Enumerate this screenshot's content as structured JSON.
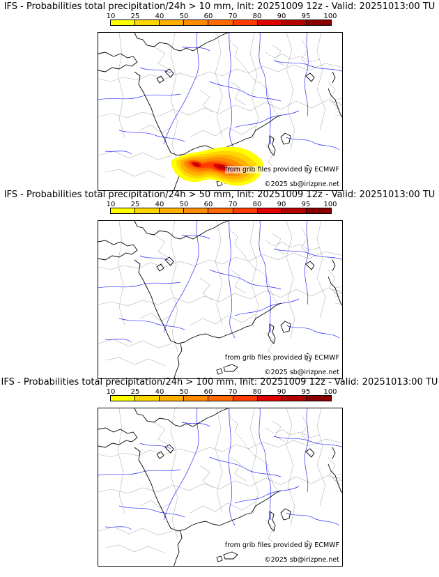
{
  "scale_labels": [
    "10",
    "25",
    "40",
    "50",
    "60",
    "70",
    "80",
    "90",
    "95",
    "100"
  ],
  "scale_colors": [
    "#ffff00",
    "#ffd700",
    "#ffb000",
    "#ff8c00",
    "#ff6a00",
    "#ff3c00",
    "#e00000",
    "#b40000",
    "#8a0000"
  ],
  "credit": "from grib files provided by ECMWF",
  "copyright": "©2025 sb@irizpne.net",
  "panels": [
    {
      "title": "IFS - Probabilities total precipitation/24h > 10 mm, Init: 20251009 12z - Valid: 20251013:00 TU",
      "has_precip": true
    },
    {
      "title": "IFS - Probabilities total precipitation/24h > 50 mm, Init: 20251009 12z - Valid: 20251013:00 TU",
      "has_precip": false
    },
    {
      "title": "IFS - Probabilities total precipitation/24h > 100 mm, Init: 20251009 12z - Valid: 20251013:00 TU",
      "has_precip": false
    }
  ]
}
